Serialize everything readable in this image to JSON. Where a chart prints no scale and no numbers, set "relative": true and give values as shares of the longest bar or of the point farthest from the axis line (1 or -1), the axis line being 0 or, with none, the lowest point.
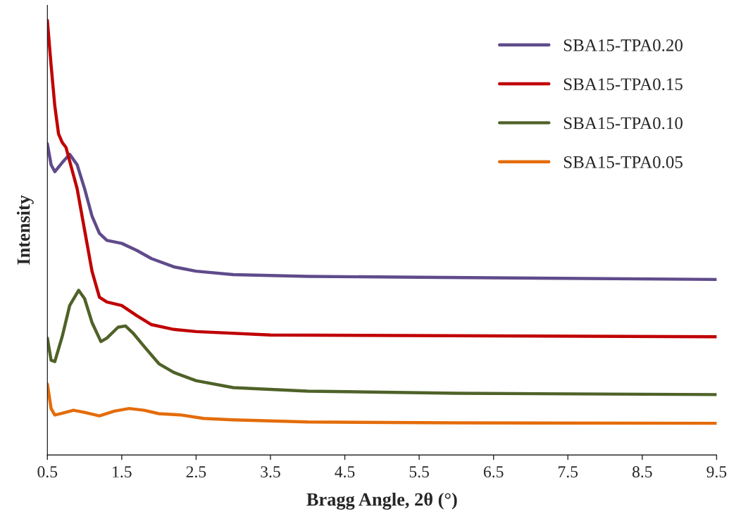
{
  "chart_data": {
    "type": "line",
    "relative": true,
    "xlabel": "Bragg Angle, 2θ (°)",
    "ylabel": "Intensity",
    "xlim": [
      0.5,
      9.5
    ],
    "xticks": [
      0.5,
      1.5,
      2.5,
      3.5,
      4.5,
      5.5,
      6.5,
      7.5,
      8.5,
      9.5
    ],
    "legend": "top right",
    "grid": false,
    "marker": "none",
    "line_style": "solid",
    "series": [
      {
        "name": "SBA15-TPA0.20",
        "color": "#5f4b8b",
        "x": [
          0.5,
          0.55,
          0.6,
          0.7,
          0.8,
          0.9,
          1.0,
          1.1,
          1.2,
          1.3,
          1.5,
          1.7,
          1.9,
          2.2,
          2.5,
          3.0,
          4.0,
          5.5,
          9.5
        ],
        "values": [
          0.716,
          0.668,
          0.652,
          0.673,
          0.692,
          0.668,
          0.613,
          0.55,
          0.51,
          0.494,
          0.487,
          0.471,
          0.452,
          0.433,
          0.423,
          0.415,
          0.411,
          0.409,
          0.404
        ]
      },
      {
        "name": "SBA15-TPA0.15",
        "color": "#c00000",
        "x": [
          0.5,
          0.55,
          0.6,
          0.65,
          0.7,
          0.75,
          0.8,
          0.9,
          1.0,
          1.1,
          1.2,
          1.3,
          1.5,
          1.7,
          1.9,
          2.2,
          2.5,
          3.5,
          9.5
        ],
        "values": [
          1.0,
          0.897,
          0.803,
          0.739,
          0.719,
          0.708,
          0.676,
          0.613,
          0.518,
          0.423,
          0.363,
          0.352,
          0.344,
          0.321,
          0.3,
          0.289,
          0.284,
          0.276,
          0.272
        ]
      },
      {
        "name": "SBA15-TPA0.10",
        "color": "#4f6228",
        "x": [
          0.5,
          0.55,
          0.6,
          0.7,
          0.8,
          0.92,
          1.0,
          1.1,
          1.22,
          1.3,
          1.45,
          1.55,
          1.65,
          1.8,
          2.0,
          2.2,
          2.5,
          3.0,
          4.0,
          6.0,
          9.5
        ],
        "values": [
          0.269,
          0.218,
          0.215,
          0.273,
          0.344,
          0.379,
          0.36,
          0.305,
          0.261,
          0.269,
          0.294,
          0.297,
          0.281,
          0.25,
          0.21,
          0.19,
          0.171,
          0.155,
          0.147,
          0.142,
          0.139
        ]
      },
      {
        "name": "SBA15-TPA0.05",
        "color": "#e46c0a",
        "x": [
          0.5,
          0.55,
          0.6,
          0.7,
          0.85,
          1.0,
          1.2,
          1.4,
          1.6,
          1.8,
          2.0,
          2.3,
          2.6,
          3.0,
          4.0,
          6.0,
          9.5
        ],
        "values": [
          0.163,
          0.107,
          0.092,
          0.096,
          0.103,
          0.098,
          0.09,
          0.101,
          0.107,
          0.103,
          0.095,
          0.092,
          0.084,
          0.081,
          0.076,
          0.074,
          0.073
        ]
      }
    ]
  }
}
